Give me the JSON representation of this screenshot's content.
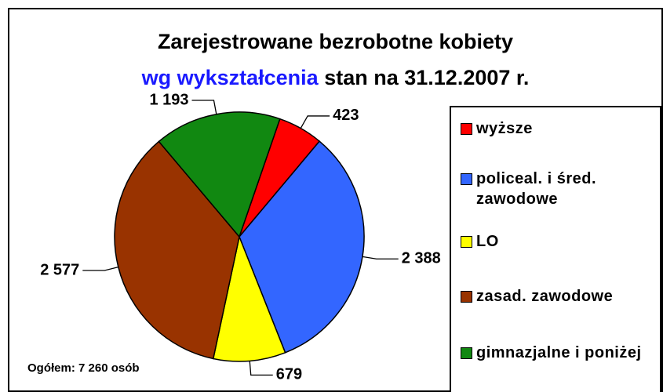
{
  "chart_data": {
    "type": "pie",
    "title": "Zarejestrowane bezrobotne kobiety",
    "subtitle_highlight": "wg wykształcenia",
    "subtitle": "stan na 31.12.2007 r.",
    "categories": [
      "wyższe",
      "policeal. i śred. zawodowe",
      "LO",
      "zasad. zawodowe",
      "gimnazjalne i poniżej"
    ],
    "values": [
      423,
      2388,
      679,
      2577,
      1193
    ],
    "value_labels": [
      "423",
      "2 388",
      "679",
      "2 577",
      "1 193"
    ],
    "colors": [
      "#ff0000",
      "#3366ff",
      "#ffff00",
      "#993300",
      "#118811"
    ],
    "annotation": "Ogółem: 7 260 osób",
    "legend": "right"
  }
}
